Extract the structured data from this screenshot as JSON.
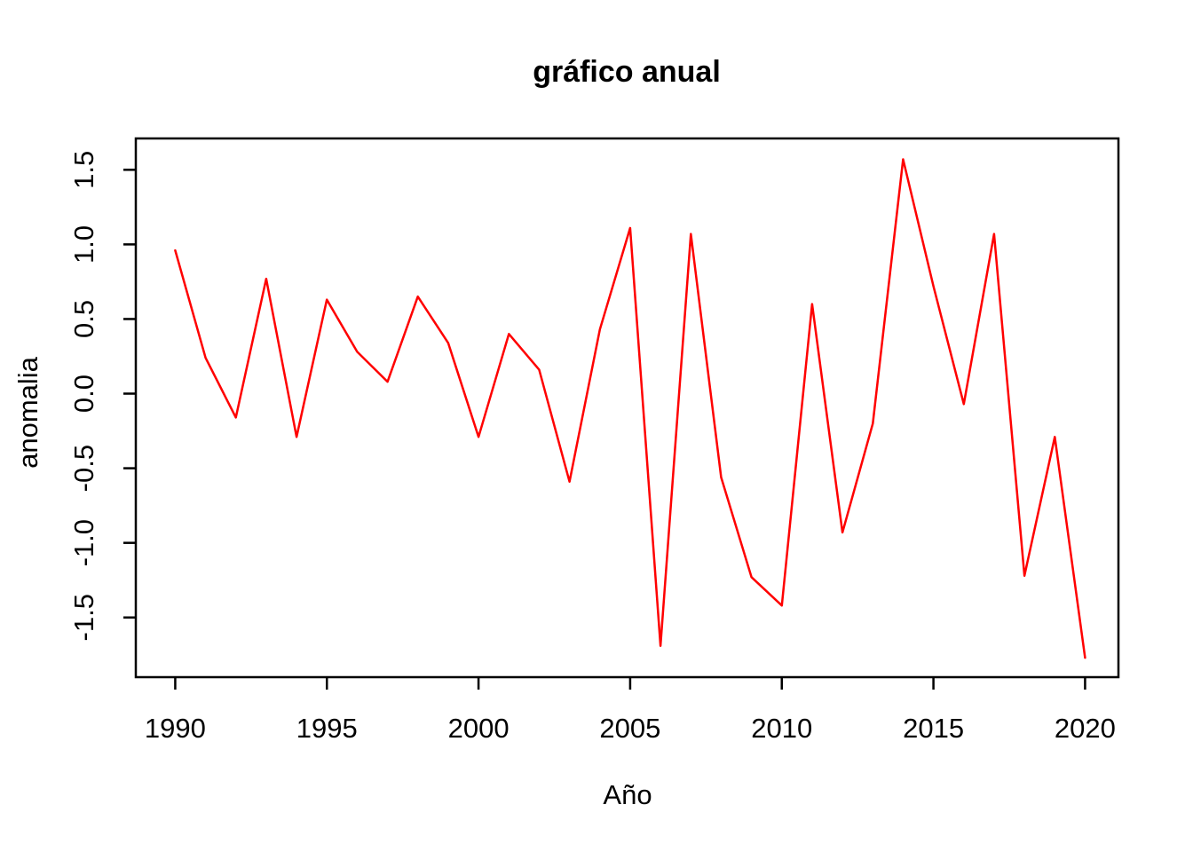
{
  "chart_data": {
    "type": "line",
    "title": "gráfico anual",
    "xlabel": "Año",
    "ylabel": "anomalia",
    "grid": false,
    "legend": "none",
    "frame_color": "#000000",
    "xlim": [
      1988.7,
      2021.1
    ],
    "ylim": [
      -1.9,
      1.71
    ],
    "x_ticks": [
      1990,
      1995,
      2000,
      2005,
      2010,
      2015,
      2020
    ],
    "x_tick_labels": [
      "1990",
      "1995",
      "2000",
      "2005",
      "2010",
      "2015",
      "2020"
    ],
    "y_ticks": [
      -1.5,
      -1.0,
      -0.5,
      0.0,
      0.5,
      1.0,
      1.5
    ],
    "y_tick_labels": [
      "-1.5",
      "-1.0",
      "-0.5",
      "0.0",
      "0.5",
      "1.0",
      "1.5"
    ],
    "series": [
      {
        "name": "anomalia",
        "color": "#ff0000",
        "x": [
          1990,
          1991,
          1992,
          1993,
          1994,
          1995,
          1996,
          1997,
          1998,
          1999,
          2000,
          2001,
          2002,
          2003,
          2004,
          2005,
          2006,
          2007,
          2008,
          2009,
          2010,
          2011,
          2012,
          2013,
          2014,
          2015,
          2016,
          2017,
          2018,
          2019,
          2020
        ],
        "values": [
          0.96,
          0.24,
          -0.16,
          0.77,
          -0.29,
          0.63,
          0.28,
          0.08,
          0.65,
          0.34,
          -0.29,
          0.4,
          0.16,
          -0.59,
          0.43,
          1.11,
          -1.69,
          1.07,
          -0.56,
          -1.23,
          -1.42,
          0.6,
          -0.93,
          -0.2,
          1.57,
          0.72,
          -0.07,
          1.07,
          -1.22,
          -0.29,
          -1.77
        ]
      }
    ]
  }
}
